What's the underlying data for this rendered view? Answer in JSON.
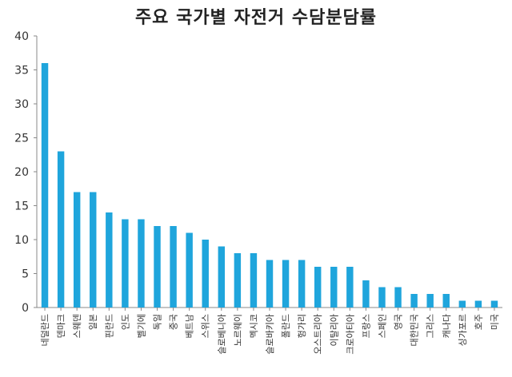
{
  "chart_data": {
    "type": "bar",
    "title": "주요 국가별 자전거 수담분담률",
    "xlabel": "",
    "ylabel": "",
    "ylim": [
      0,
      40
    ],
    "yticks": [
      0,
      5,
      10,
      15,
      20,
      25,
      30,
      35,
      40
    ],
    "grid": false,
    "bar_color": "#1fa5dc",
    "categories": [
      "네덜란드",
      "덴마크",
      "스웨덴",
      "일본",
      "핀란드",
      "인도",
      "벨기에",
      "독일",
      "중국",
      "베트남",
      "스위스",
      "슬로베니아",
      "노르웨이",
      "멕시코",
      "슬로바키아",
      "폴란드",
      "헝가리",
      "오스트리아",
      "이탈리아",
      "크로아티아",
      "프랑스",
      "스페인",
      "영국",
      "대한민국",
      "그리스",
      "캐나다",
      "싱가포르",
      "호주",
      "미국"
    ],
    "values": [
      36,
      23,
      17,
      17,
      14,
      13,
      13,
      12,
      12,
      11,
      10,
      9,
      8,
      8,
      7,
      7,
      7,
      6,
      6,
      6,
      4,
      3,
      3,
      2,
      2,
      2,
      1,
      1,
      1
    ]
  }
}
